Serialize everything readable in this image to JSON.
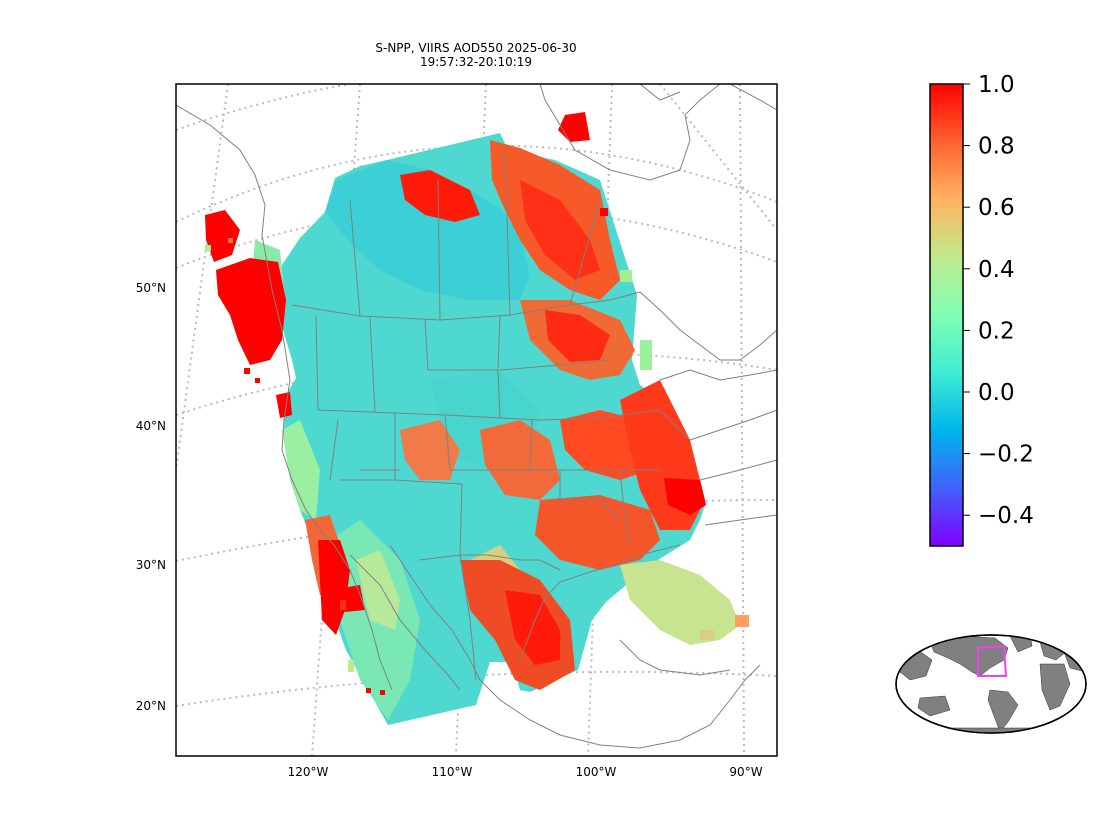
{
  "title_line1": "S-NPP, VIIRS AOD550 2025-06-30",
  "title_line2": "19:57:32-20:10:19",
  "lat_labels": [
    "50°N",
    "40°N",
    "30°N",
    "20°N"
  ],
  "lon_labels": [
    "120°W",
    "110°W",
    "100°W",
    "90°W"
  ],
  "colorbar": {
    "colormap": "rainbow",
    "min": -0.5,
    "max": 1.0,
    "ticks": [
      "1.0",
      "0.8",
      "0.6",
      "0.4",
      "0.2",
      "0.0",
      "−0.2",
      "−0.4"
    ],
    "colors": [
      "#8000ff",
      "#4062fa",
      "#00b5eb",
      "#40ecd4",
      "#80ffb4",
      "#c0eb8d",
      "#ffb360",
      "#ff6230",
      "#ff0000"
    ]
  },
  "map": {
    "state_line_color": "#808080",
    "graticule_color": "#bbbbbb",
    "inset_land_color": "#808080",
    "inset_box_color": "#ee44ee"
  }
}
